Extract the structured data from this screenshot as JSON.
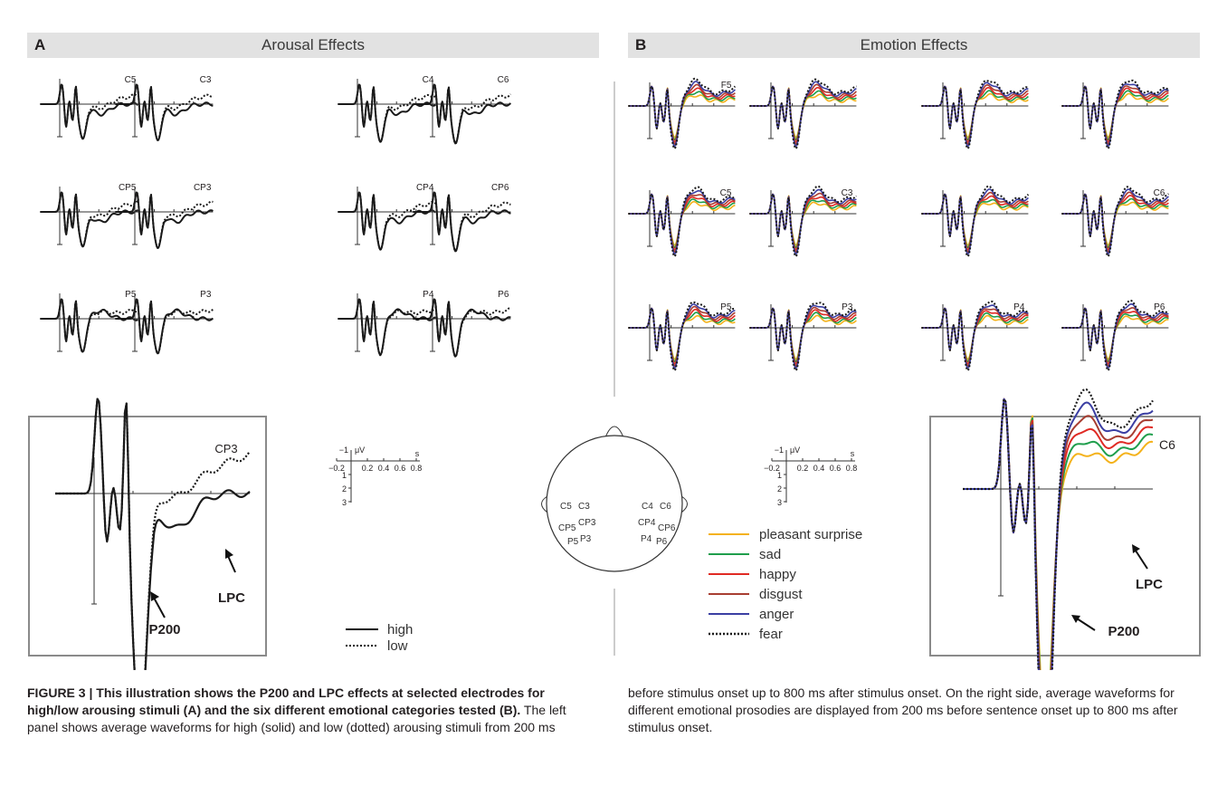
{
  "figure_number": "FIGURE 3",
  "panel_a": {
    "letter": "A",
    "title": "Arousal Effects",
    "electrodes": [
      "C5",
      "C3",
      "C4",
      "C6",
      "CP5",
      "CP3",
      "CP4",
      "CP6",
      "P5",
      "P3",
      "P4",
      "P6"
    ],
    "inset": {
      "electrode": "CP3",
      "p200_label": "P200",
      "lpc_label": "LPC"
    },
    "scale": {
      "neg": "−1",
      "unit": "μV",
      "s": "s",
      "x_ticks": [
        "−0.2",
        "0.2",
        "0.4",
        "0.6",
        "0.8"
      ],
      "y_ticks": [
        "1",
        "2",
        "3"
      ]
    },
    "legend": [
      {
        "label": "high",
        "style": "solid"
      },
      {
        "label": "low",
        "style": "dotted"
      }
    ]
  },
  "panel_b": {
    "letter": "B",
    "title": "Emotion Effects",
    "electrodes": [
      "F5",
      "",
      "",
      "",
      "C5",
      "C3",
      "",
      "C6",
      "P5",
      "P3",
      "P4",
      "P6"
    ],
    "inset": {
      "electrode": "C6",
      "p200_label": "P200",
      "lpc_label": "LPC"
    },
    "scale": {
      "neg": "−1",
      "unit": "μV",
      "s": "s",
      "x_ticks": [
        "−0.2",
        "0.2",
        "0.4",
        "0.6",
        "0.8"
      ],
      "y_ticks": [
        "1",
        "2",
        "3"
      ]
    },
    "legend": [
      {
        "label": "pleasant surprise",
        "color": "#f4b21b"
      },
      {
        "label": "sad",
        "color": "#1f9e4c"
      },
      {
        "label": "happy",
        "color": "#e02a24"
      },
      {
        "label": "disgust",
        "color": "#a83e32"
      },
      {
        "label": "anger",
        "color": "#3b3fa3"
      },
      {
        "label": "fear",
        "color": "#1a1a1a",
        "style": "dotted"
      }
    ]
  },
  "head_map": {
    "labels": [
      "C5",
      "C3",
      "C4",
      "C6",
      "CP5",
      "CP3",
      "CP4",
      "CP6",
      "P5",
      "P3",
      "P4",
      "P6"
    ]
  },
  "caption": {
    "bold": "FIGURE 3 | This illustration shows the P200 and LPC effects at selected electrodes for high/low arousing stimuli (A) and the six different emotional categories tested (B).",
    "left_rest": " The left panel shows average waveforms for high (solid) and low (dotted) arousing stimuli from 200 ms",
    "right": "before stimulus onset up to 800 ms after stimulus onset. On the right side, average waveforms for different emotional prosodies are displayed from 200 ms before sentence onset up to 800 ms after stimulus onset."
  }
}
